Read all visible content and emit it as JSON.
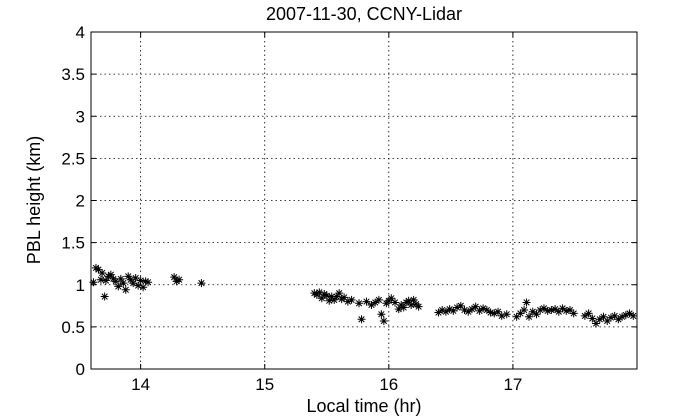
{
  "chart_data": {
    "type": "scatter",
    "title": "2007-11-30, CCNY-Lidar",
    "xlabel": "Local time (hr)",
    "ylabel": "PBL height (km)",
    "xlim": [
      13.6,
      18.0
    ],
    "ylim": [
      0,
      4
    ],
    "xticks": [
      14,
      15,
      16,
      17
    ],
    "xtick_labels": [
      "14",
      "15",
      "16",
      "17"
    ],
    "yticks": [
      0,
      0.5,
      1,
      1.5,
      2,
      2.5,
      3,
      3.5,
      4
    ],
    "ytick_labels": [
      "0",
      "0.5",
      "1",
      "1.5",
      "2",
      "2.5",
      "3",
      "3.5",
      "4"
    ],
    "grid": true,
    "marker": "*",
    "color": "#000000",
    "series": [
      {
        "points": [
          [
            13.62,
            1.03
          ],
          [
            13.64,
            1.2
          ],
          [
            13.66,
            1.18
          ],
          [
            13.68,
            1.06
          ],
          [
            13.69,
            1.14
          ],
          [
            13.71,
            0.86
          ],
          [
            13.72,
            1.05
          ],
          [
            13.74,
            1.1
          ],
          [
            13.76,
            1.12
          ],
          [
            13.78,
            1.07
          ],
          [
            13.8,
            1.04
          ],
          [
            13.82,
            0.98
          ],
          [
            13.84,
            1.07
          ],
          [
            13.86,
            1.02
          ],
          [
            13.88,
            0.94
          ],
          [
            13.9,
            1.1
          ],
          [
            13.92,
            1.06
          ],
          [
            13.94,
            1.02
          ],
          [
            13.96,
            1.08
          ],
          [
            13.98,
            0.99
          ],
          [
            14.0,
            1.05
          ],
          [
            14.02,
            0.97
          ],
          [
            14.04,
            1.04
          ],
          [
            14.06,
            1.03
          ],
          [
            14.27,
            1.09
          ],
          [
            14.29,
            1.04
          ],
          [
            14.31,
            1.06
          ],
          [
            14.49,
            1.02
          ],
          [
            15.4,
            0.9
          ],
          [
            15.42,
            0.88
          ],
          [
            15.44,
            0.91
          ],
          [
            15.46,
            0.84
          ],
          [
            15.48,
            0.89
          ],
          [
            15.5,
            0.87
          ],
          [
            15.52,
            0.81
          ],
          [
            15.54,
            0.86
          ],
          [
            15.56,
            0.82
          ],
          [
            15.58,
            0.86
          ],
          [
            15.6,
            0.9
          ],
          [
            15.62,
            0.83
          ],
          [
            15.64,
            0.85
          ],
          [
            15.67,
            0.8
          ],
          [
            15.7,
            0.82
          ],
          [
            15.76,
            0.78
          ],
          [
            15.78,
            0.59
          ],
          [
            15.82,
            0.8
          ],
          [
            15.86,
            0.76
          ],
          [
            15.89,
            0.79
          ],
          [
            15.92,
            0.82
          ],
          [
            15.94,
            0.65
          ],
          [
            15.96,
            0.57
          ],
          [
            15.98,
            0.78
          ],
          [
            16.0,
            0.81
          ],
          [
            16.02,
            0.84
          ],
          [
            16.05,
            0.79
          ],
          [
            16.08,
            0.71
          ],
          [
            16.1,
            0.76
          ],
          [
            16.12,
            0.73
          ],
          [
            16.14,
            0.79
          ],
          [
            16.16,
            0.81
          ],
          [
            16.18,
            0.76
          ],
          [
            16.2,
            0.82
          ],
          [
            16.22,
            0.77
          ],
          [
            16.24,
            0.74
          ],
          [
            16.4,
            0.67
          ],
          [
            16.43,
            0.7
          ],
          [
            16.46,
            0.68
          ],
          [
            16.49,
            0.71
          ],
          [
            16.52,
            0.69
          ],
          [
            16.55,
            0.73
          ],
          [
            16.58,
            0.75
          ],
          [
            16.61,
            0.7
          ],
          [
            16.64,
            0.68
          ],
          [
            16.67,
            0.71
          ],
          [
            16.7,
            0.74
          ],
          [
            16.73,
            0.69
          ],
          [
            16.76,
            0.72
          ],
          [
            16.79,
            0.7
          ],
          [
            16.82,
            0.67
          ],
          [
            16.85,
            0.66
          ],
          [
            16.88,
            0.68
          ],
          [
            16.91,
            0.63
          ],
          [
            16.95,
            0.65
          ],
          [
            17.03,
            0.62
          ],
          [
            17.06,
            0.66
          ],
          [
            17.09,
            0.7
          ],
          [
            17.11,
            0.79
          ],
          [
            17.13,
            0.62
          ],
          [
            17.16,
            0.68
          ],
          [
            17.19,
            0.65
          ],
          [
            17.22,
            0.7
          ],
          [
            17.25,
            0.72
          ],
          [
            17.28,
            0.69
          ],
          [
            17.31,
            0.7
          ],
          [
            17.34,
            0.71
          ],
          [
            17.37,
            0.68
          ],
          [
            17.4,
            0.72
          ],
          [
            17.43,
            0.69
          ],
          [
            17.46,
            0.7
          ],
          [
            17.49,
            0.66
          ],
          [
            17.58,
            0.63
          ],
          [
            17.61,
            0.66
          ],
          [
            17.64,
            0.6
          ],
          [
            17.67,
            0.54
          ],
          [
            17.7,
            0.59
          ],
          [
            17.73,
            0.62
          ],
          [
            17.76,
            0.57
          ],
          [
            17.79,
            0.61
          ],
          [
            17.82,
            0.63
          ],
          [
            17.85,
            0.59
          ],
          [
            17.88,
            0.62
          ],
          [
            17.91,
            0.64
          ],
          [
            17.94,
            0.66
          ],
          [
            17.97,
            0.63
          ]
        ]
      }
    ]
  }
}
